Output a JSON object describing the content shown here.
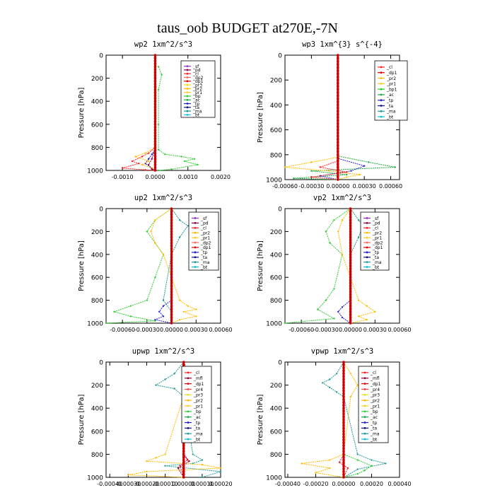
{
  "figure": {
    "title": "taus_oob  BUDGET at270E,-7N"
  },
  "colors": {
    "sf": "#9933cc",
    "pd": "#880044",
    "cl": "#ff2222",
    "dp1": "#dd0000",
    "dp2": "#ff6666",
    "pr1": "#ffcc22",
    "pr2": "#ffbb00",
    "pr3": "#eedd22",
    "pr4": "#ff4444",
    "mfl": "#990033",
    "bp": "#33cc33",
    "bp1": "#22cc22",
    "ac": "#22aa44",
    "tp": "#2222cc",
    "ta": "#111188",
    "ma": "#229999",
    "bt": "#11bbdd",
    "res": "#cc0000"
  },
  "chart_data": [
    {
      "type": "line",
      "title": "wp2  1xm^2/s^3",
      "ylabel": "Pressure [hPa]",
      "xlim": [
        -0.0015,
        0.002
      ],
      "ylim": [
        1000,
        0
      ],
      "xticks": [
        -0.001,
        0,
        0.001,
        0.002
      ],
      "xticklabels": [
        "-0.0010",
        "0.0000",
        "0.0010",
        "0.0020"
      ],
      "yticks": [
        0,
        200,
        400,
        600,
        800,
        1000
      ],
      "yticklabels": [
        "0",
        "200",
        "400",
        "600",
        "800",
        "1000"
      ],
      "legend": [
        "_sf",
        "_pd",
        "_cl",
        "_dp2",
        "_dp1",
        "_pr3",
        "_pr2",
        "_pr1",
        "_bp",
        "_ac",
        "_tp",
        "_ta",
        "_ma",
        "_bt"
      ],
      "legend_keys": [
        "sf",
        "pd",
        "cl",
        "dp2",
        "dp1",
        "pr3",
        "pr2",
        "pr1",
        "bp",
        "ac",
        "tp",
        "ta",
        "ma",
        "bt"
      ],
      "legend_position": "top-right",
      "series": [
        {
          "key": "bp",
          "x": [
            0.0001,
            0.0002,
            0.0001,
            0.0001,
            0.0001,
            0.0003,
            0.0008,
            0.0012,
            0.0009,
            0.0013,
            0.0005,
            0.0001
          ],
          "y": [
            100,
            170,
            300,
            600,
            820,
            860,
            880,
            900,
            920,
            950,
            990,
            1000
          ]
        },
        {
          "key": "tp",
          "x": [
            0,
            0,
            0,
            -0.0001,
            -0.0002,
            -0.0003,
            -0.0001,
            0
          ],
          "y": [
            0,
            600,
            820,
            860,
            900,
            940,
            980,
            1000
          ]
        },
        {
          "key": "pr2",
          "x": [
            0,
            0,
            -0.0003,
            -0.0006,
            -0.0002,
            -0.0004,
            -0.0001,
            0
          ],
          "y": [
            0,
            800,
            850,
            880,
            920,
            950,
            980,
            1000
          ]
        },
        {
          "key": "cl",
          "x": [
            0,
            0,
            -0.0002,
            -0.0004,
            -0.0007,
            -0.0005,
            -0.001,
            -0.0003,
            0
          ],
          "y": [
            0,
            800,
            850,
            880,
            920,
            940,
            980,
            995,
            1000
          ]
        },
        {
          "key": "pd",
          "x": [
            0,
            0,
            -0.0001,
            -0.0002,
            -0.0001,
            0
          ],
          "y": [
            0,
            800,
            900,
            950,
            990,
            1000
          ]
        },
        {
          "key": "res",
          "x": [
            0,
            0
          ],
          "y": [
            0,
            1000
          ]
        }
      ]
    },
    {
      "type": "line",
      "title": "wp3  1xm^{3} s^{-4}",
      "ylabel": "Pressure [hPa]",
      "xlim": [
        -0.0006,
        0.0007
      ],
      "ylim": [
        1000,
        0
      ],
      "xticks": [
        -0.0006,
        -0.0003,
        0,
        0.0003,
        0.0006
      ],
      "xticklabels": [
        "-0.00060",
        "-0.00030",
        "0.00000",
        "0.00030",
        "0.00060"
      ],
      "yticks": [
        0,
        200,
        400,
        600,
        800,
        1000
      ],
      "yticklabels": [
        "0",
        "200",
        "400",
        "600",
        "800",
        "1000"
      ],
      "legend": [
        "_cl",
        "_dp1",
        "_pr2",
        "_pr1",
        "_bp1",
        "_ac",
        "_tp",
        "_ta",
        "_ma",
        "_bt"
      ],
      "legend_keys": [
        "cl",
        "dp1",
        "pr2",
        "pr1",
        "bp1",
        "ac",
        "tp",
        "ta",
        "ma",
        "bt"
      ],
      "legend_position": "top-right",
      "series": [
        {
          "key": "ac",
          "x": [
            0,
            0,
            0.00035,
            0.00065,
            -0.0003,
            0.0001,
            -0.0005,
            0
          ],
          "y": [
            0,
            810,
            860,
            900,
            930,
            960,
            990,
            1000
          ]
        },
        {
          "key": "pr2",
          "x": [
            0,
            0,
            -0.0003,
            -0.0006,
            -0.0001,
            0.00025,
            0.0001,
            0
          ],
          "y": [
            0,
            820,
            860,
            900,
            930,
            960,
            980,
            1000
          ]
        },
        {
          "key": "tp",
          "x": [
            0,
            0,
            0.0003,
            0.00015,
            -0.0002,
            0
          ],
          "y": [
            0,
            830,
            890,
            930,
            970,
            1000
          ]
        },
        {
          "key": "cl",
          "x": [
            0,
            0,
            -0.0002,
            0.0001,
            -0.0003,
            0
          ],
          "y": [
            0,
            850,
            900,
            940,
            980,
            1000
          ]
        },
        {
          "key": "res",
          "x": [
            0,
            0
          ],
          "y": [
            0,
            1000
          ]
        }
      ]
    },
    {
      "type": "line",
      "title": "up2  1xm^2/s^3",
      "ylabel": "Pressure [hPa]",
      "xlim": [
        -0.0008,
        0.0006
      ],
      "ylim": [
        1000,
        0
      ],
      "xticks": [
        -0.0006,
        -0.0003,
        0,
        0.0003,
        0.0006
      ],
      "xticklabels": [
        "-0.00060",
        "-0.00030",
        "0.00000",
        "0.00030",
        "0.00060"
      ],
      "yticks": [
        0,
        200,
        400,
        600,
        800,
        1000
      ],
      "yticklabels": [
        "0",
        "200",
        "400",
        "600",
        "800",
        "1000"
      ],
      "legend": [
        "_sf",
        "_pd",
        "_cl",
        "_pr2",
        "_pr1",
        "_dp2",
        "_dp1",
        "_tp",
        "_ta",
        "_ma",
        "_bt"
      ],
      "legend_keys": [
        "sf",
        "pd",
        "cl",
        "pr2",
        "pr1",
        "dp2",
        "dp1",
        "tp",
        "ta",
        "ma",
        "bt"
      ],
      "legend_position": "top-right",
      "series": [
        {
          "key": "bp",
          "x": [
            0,
            -0.0002,
            -0.0003,
            -0.0002,
            -0.0001,
            -0.0002,
            -0.0003,
            -0.0005,
            -0.0007,
            -0.0005,
            -0.0002,
            -0.0008
          ],
          "y": [
            0,
            100,
            200,
            300,
            400,
            600,
            800,
            850,
            900,
            940,
            980,
            1000
          ]
        },
        {
          "key": "pr2",
          "x": [
            0,
            -0.0002,
            -0.00025,
            -0.0002,
            -0.0001,
            0.0001,
            0.0002,
            0.0003,
            0.00015,
            0.0003,
            0.0001,
            0
          ],
          "y": [
            0,
            100,
            200,
            300,
            400,
            800,
            850,
            880,
            900,
            940,
            970,
            1000
          ]
        },
        {
          "key": "ma",
          "x": [
            0,
            0.0001,
            0.0002,
            0.0001,
            0,
            -0.0001,
            0,
            0
          ],
          "y": [
            0,
            100,
            150,
            250,
            400,
            800,
            900,
            1000
          ]
        },
        {
          "key": "tp",
          "x": [
            0,
            0,
            -0.0001,
            -0.00015,
            -0.0001,
            -0.0002,
            0
          ],
          "y": [
            0,
            800,
            850,
            900,
            940,
            970,
            1000
          ]
        },
        {
          "key": "res",
          "x": [
            0,
            0
          ],
          "y": [
            0,
            1000
          ]
        }
      ]
    },
    {
      "type": "line",
      "title": "vp2  1xm^2/s^3",
      "ylabel": "Pressure [hPa]",
      "xlim": [
        -0.0008,
        0.0006
      ],
      "ylim": [
        1000,
        0
      ],
      "xticks": [
        -0.0006,
        -0.0003,
        0,
        0.0003,
        0.0006
      ],
      "xticklabels": [
        "-0.00060",
        "-0.00030",
        "0.00000",
        "0.00030",
        "0.00060"
      ],
      "yticks": [
        0,
        200,
        400,
        600,
        800,
        1000
      ],
      "yticklabels": [
        "0",
        "200",
        "400",
        "600",
        "800",
        "1000"
      ],
      "legend": [
        "_sf",
        "_pd",
        "_cl",
        "_pr2",
        "_pr1",
        "_dp2",
        "_dp1",
        "_tp",
        "_ta",
        "_ma",
        "_bt"
      ],
      "legend_keys": [
        "sf",
        "pd",
        "cl",
        "pr2",
        "pr1",
        "dp2",
        "dp1",
        "tp",
        "ta",
        "ma",
        "bt"
      ],
      "legend_position": "top-right",
      "series": [
        {
          "key": "bp",
          "x": [
            0,
            -0.0002,
            -0.0003,
            -0.00025,
            -0.0001,
            -0.0002,
            -0.0003,
            -0.0004,
            -0.0002,
            -0.0008
          ],
          "y": [
            0,
            100,
            200,
            300,
            400,
            700,
            800,
            880,
            960,
            1000
          ]
        },
        {
          "key": "pr2",
          "x": [
            0,
            -0.0001,
            -0.00015,
            -0.0001,
            0.0001,
            0.0002,
            0.0003,
            0.0001,
            0.0002,
            0
          ],
          "y": [
            0,
            100,
            200,
            400,
            800,
            850,
            900,
            940,
            970,
            1000
          ]
        },
        {
          "key": "ma",
          "x": [
            0,
            0.0001,
            0.00015,
            0.0001,
            0,
            0
          ],
          "y": [
            0,
            100,
            150,
            250,
            400,
            1000
          ]
        },
        {
          "key": "tp",
          "x": [
            0,
            0,
            -0.0001,
            -0.00015,
            -0.0001,
            0
          ],
          "y": [
            0,
            800,
            860,
            900,
            950,
            1000
          ]
        },
        {
          "key": "res",
          "x": [
            0,
            0
          ],
          "y": [
            0,
            1000
          ]
        }
      ]
    },
    {
      "type": "line",
      "title": "upwp  1xm^2/s^3",
      "ylabel": "Pressure [hPa]",
      "xlim": [
        -0.00042,
        0.0002
      ],
      "ylim": [
        1000,
        0
      ],
      "xticks": [
        -0.0004,
        -0.0003,
        -0.0002,
        -0.0001,
        0,
        0.0001,
        0.0002
      ],
      "xticklabels": [
        "-0.00040",
        "-0.00030",
        "-0.00020",
        "-0.00010",
        "0.00000",
        "0.00010",
        "0.00020"
      ],
      "yticks": [
        0,
        200,
        400,
        600,
        800,
        1000
      ],
      "yticklabels": [
        "0",
        "200",
        "400",
        "600",
        "800",
        "1000"
      ],
      "legend": [
        "_cl",
        "_mfl",
        "_dp1",
        "_pr4",
        "_pr3",
        "_pr2",
        "_pr1",
        "_bp",
        "_ac",
        "_tp",
        "_ta",
        "_ma",
        "_bt"
      ],
      "legend_keys": [
        "cl",
        "mfl",
        "dp1",
        "pr4",
        "pr3",
        "pr2",
        "pr1",
        "bp",
        "ac",
        "tp",
        "ta",
        "ma",
        "bt"
      ],
      "legend_position": "top-right",
      "series": [
        {
          "key": "ma",
          "x": [
            0,
            -5e-05,
            -0.0001,
            -0.00015,
            -5e-05,
            0,
            5e-05,
            0.0001,
            5e-05,
            -0.0001,
            0.0002,
            0.0001
          ],
          "y": [
            0,
            100,
            150,
            200,
            230,
            300,
            800,
            850,
            880,
            900,
            950,
            1000
          ]
        },
        {
          "key": "pr2",
          "x": [
            0,
            3e-05,
            5e-05,
            0,
            -0.0001,
            -0.00015,
            -0.0002,
            0.0001,
            0.0002,
            -0.0002,
            -0.0003,
            0
          ],
          "y": [
            0,
            100,
            200,
            300,
            800,
            830,
            860,
            890,
            920,
            950,
            980,
            1000
          ]
        },
        {
          "key": "cl",
          "x": [
            0,
            3e-05,
            5e-05,
            3e-05,
            0,
            2e-05,
            -2e-05,
            0
          ],
          "y": [
            0,
            100,
            200,
            300,
            800,
            850,
            900,
            1000
          ]
        },
        {
          "key": "mfl",
          "x": [
            0,
            0,
            3e-05,
            -3e-05,
            0
          ],
          "y": [
            0,
            800,
            860,
            920,
            1000
          ]
        },
        {
          "key": "res",
          "x": [
            0,
            0
          ],
          "y": [
            0,
            1000
          ]
        }
      ]
    },
    {
      "type": "line",
      "title": "vpwp  1xm^2/s^3",
      "ylabel": "Pressure [hPa]",
      "xlim": [
        -0.00042,
        0.0004
      ],
      "ylim": [
        1000,
        0
      ],
      "xticks": [
        -0.0004,
        -0.0002,
        0,
        0.0002,
        0.0004
      ],
      "xticklabels": [
        "-0.00040",
        "-0.00020",
        "0.00000",
        "0.00020",
        "0.00040"
      ],
      "yticks": [
        0,
        200,
        400,
        600,
        800,
        1000
      ],
      "yticklabels": [
        "0",
        "200",
        "400",
        "600",
        "800",
        "1000"
      ],
      "legend": [
        "_cl",
        "_mfl",
        "_dp1",
        "_pr4",
        "_pr3",
        "_pr2",
        "_pr1",
        "_bp",
        "_ac",
        "_tp",
        "_ta",
        "_ma",
        "_bt"
      ],
      "legend_keys": [
        "cl",
        "mfl",
        "dp1",
        "pr4",
        "pr3",
        "pr2",
        "pr1",
        "bp",
        "ac",
        "tp",
        "ta",
        "ma",
        "bt"
      ],
      "legend_position": "top-right",
      "series": [
        {
          "key": "ma",
          "x": [
            0,
            -5e-05,
            -0.0001,
            -0.00015,
            -0.0001,
            -5e-05,
            0,
            0.0001,
            0.0002,
            0.0003,
            0.0001,
            0
          ],
          "y": [
            0,
            100,
            150,
            180,
            220,
            260,
            300,
            800,
            850,
            880,
            930,
            1000
          ]
        },
        {
          "key": "pr2",
          "x": [
            0,
            5e-05,
            0.0001,
            5e-05,
            0,
            -0.0001,
            -0.0003,
            -0.0001,
            -0.0002,
            0
          ],
          "y": [
            0,
            100,
            200,
            300,
            800,
            850,
            880,
            920,
            960,
            1000
          ]
        },
        {
          "key": "bp",
          "x": [
            0,
            0,
            0.0001,
            0.0002,
            0.00015,
            0.0001,
            0
          ],
          "y": [
            0,
            800,
            850,
            900,
            940,
            970,
            1000
          ]
        },
        {
          "key": "cl",
          "x": [
            0,
            0,
            -3e-05,
            3e-05,
            0
          ],
          "y": [
            0,
            800,
            870,
            920,
            1000
          ]
        },
        {
          "key": "res",
          "x": [
            0,
            0
          ],
          "y": [
            0,
            1000
          ]
        }
      ]
    }
  ]
}
